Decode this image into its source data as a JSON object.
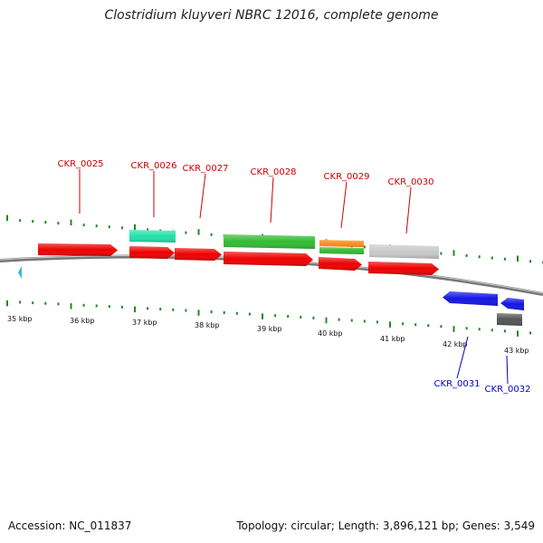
{
  "title": "Clostridium kluyveri NBRC 12016, complete genome",
  "footer": {
    "accession": "Accession: NC_011837",
    "summary": "Topology: circular; Length: 3,896,121 bp; Genes: 3,549"
  },
  "colors": {
    "cds_red": "#ee0000",
    "rrna_cyan": "#22e0a8",
    "trna_green": "#33bb33",
    "orange": "#ff8c1a",
    "gray": "#c8c8c8",
    "dark_gray": "#555555",
    "blue": "#1515e6",
    "light_blue": "#33b5e5",
    "tick_green": "#228822",
    "backbone": "#777777",
    "plus_label": "#cc0000",
    "minus_label": "#0000cc"
  },
  "scale": {
    "unit": "kbp",
    "labels": [
      "35 kbp",
      "36 kbp",
      "37 kbp",
      "38 kbp",
      "39 kbp",
      "40 kbp",
      "41 kbp",
      "42 kbp",
      "43 kbp"
    ]
  },
  "genes": [
    {
      "label": "CKR_0025",
      "strand": "+"
    },
    {
      "label": "CKR_0026",
      "strand": "+"
    },
    {
      "label": "CKR_0027",
      "strand": "+"
    },
    {
      "label": "CKR_0028",
      "strand": "+"
    },
    {
      "label": "CKR_0029",
      "strand": "+"
    },
    {
      "label": "CKR_0030",
      "strand": "+"
    },
    {
      "label": "CKR_0031",
      "strand": "-"
    },
    {
      "label": "CKR_0032",
      "strand": "-"
    }
  ]
}
